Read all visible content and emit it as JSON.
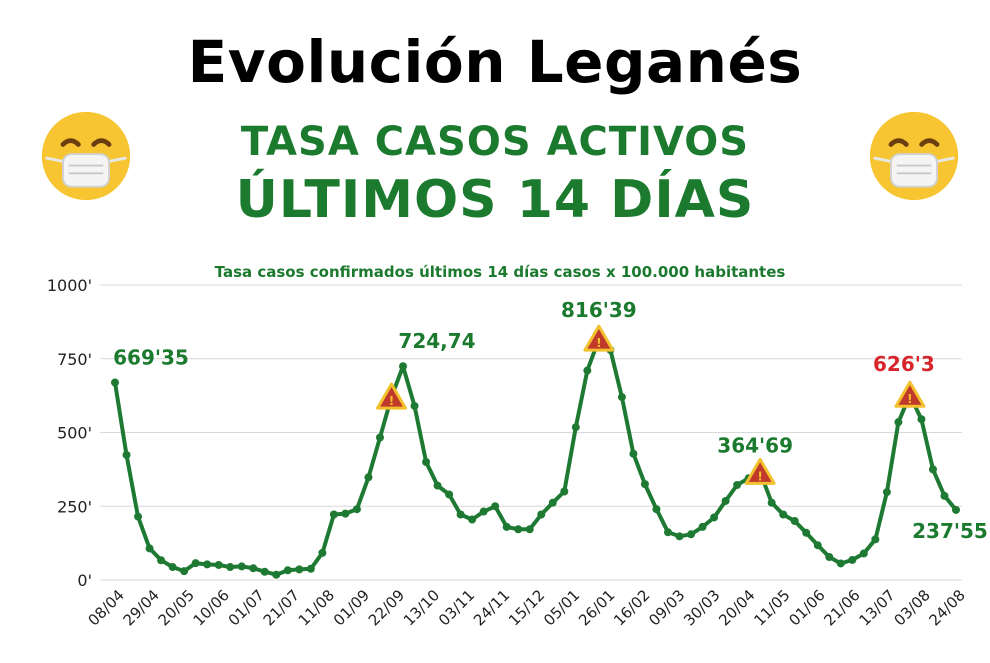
{
  "header": {
    "title": "Evolución Leganés",
    "subtitle_1": "TASA CASOS ACTIVOS",
    "subtitle_2": "ÚLTIMOS 14 DÍAS"
  },
  "colors": {
    "line": "#1e7a33",
    "label": "#1b7a2e",
    "highlight_label": "#d7262b",
    "grid": "#d9d9d9",
    "warning_fill": "#c0392b",
    "warning_stroke": "#f2c12e"
  },
  "chart_data": {
    "type": "line",
    "title": "Tasa casos confirmados últimos 14 días  casos x 100.000 habitantes",
    "xlabel": "",
    "ylabel": "",
    "ylim": [
      0,
      1000
    ],
    "grid": true,
    "yticks": [
      0,
      250,
      500,
      750,
      1000
    ],
    "ytick_labels": [
      "0'",
      "250'",
      "500'",
      "750'",
      "1000'"
    ],
    "xtick_labels": [
      "08/04",
      "29/04",
      "20/05",
      "10/06",
      "01/07",
      "21/07",
      "11/08",
      "01/09",
      "22/09",
      "13/10",
      "03/11",
      "24/11",
      "15/12",
      "05/01",
      "26/01",
      "16/02",
      "09/03",
      "30/03",
      "20/04",
      "11/05",
      "01/06",
      "21/06",
      "13/07",
      "03/08",
      "24/08"
    ],
    "series": [
      {
        "name": "Tasa casos activos",
        "values": [
          669.35,
          424,
          215,
          107,
          67,
          44,
          30,
          57,
          53,
          51,
          44,
          46,
          40,
          28,
          18,
          33,
          36,
          38,
          92,
          222,
          225,
          240,
          348,
          483,
          620,
          724.74,
          590,
          400,
          320,
          290,
          222,
          205,
          232,
          250,
          180,
          172,
          172,
          222,
          262,
          300,
          518,
          710,
          816.39,
          780,
          620,
          428,
          325,
          240,
          162,
          148,
          155,
          180,
          212,
          268,
          322,
          345,
          364.69,
          262,
          222,
          200,
          160,
          118,
          78,
          56,
          68,
          90,
          138,
          298,
          535,
          626.3,
          545,
          375,
          285,
          237.55
        ]
      }
    ],
    "annotations": [
      {
        "index": 0,
        "text": "669'35",
        "style": "green"
      },
      {
        "index": 25,
        "text": "724,74",
        "style": "green"
      },
      {
        "index": 42,
        "text": "816'39",
        "style": "green"
      },
      {
        "index": 56,
        "text": "364'69",
        "style": "green"
      },
      {
        "index": 69,
        "text": "626'3",
        "style": "red"
      },
      {
        "index": 73,
        "text": "237'55",
        "style": "green"
      }
    ],
    "warning_markers": [
      24,
      42,
      56,
      69
    ]
  }
}
